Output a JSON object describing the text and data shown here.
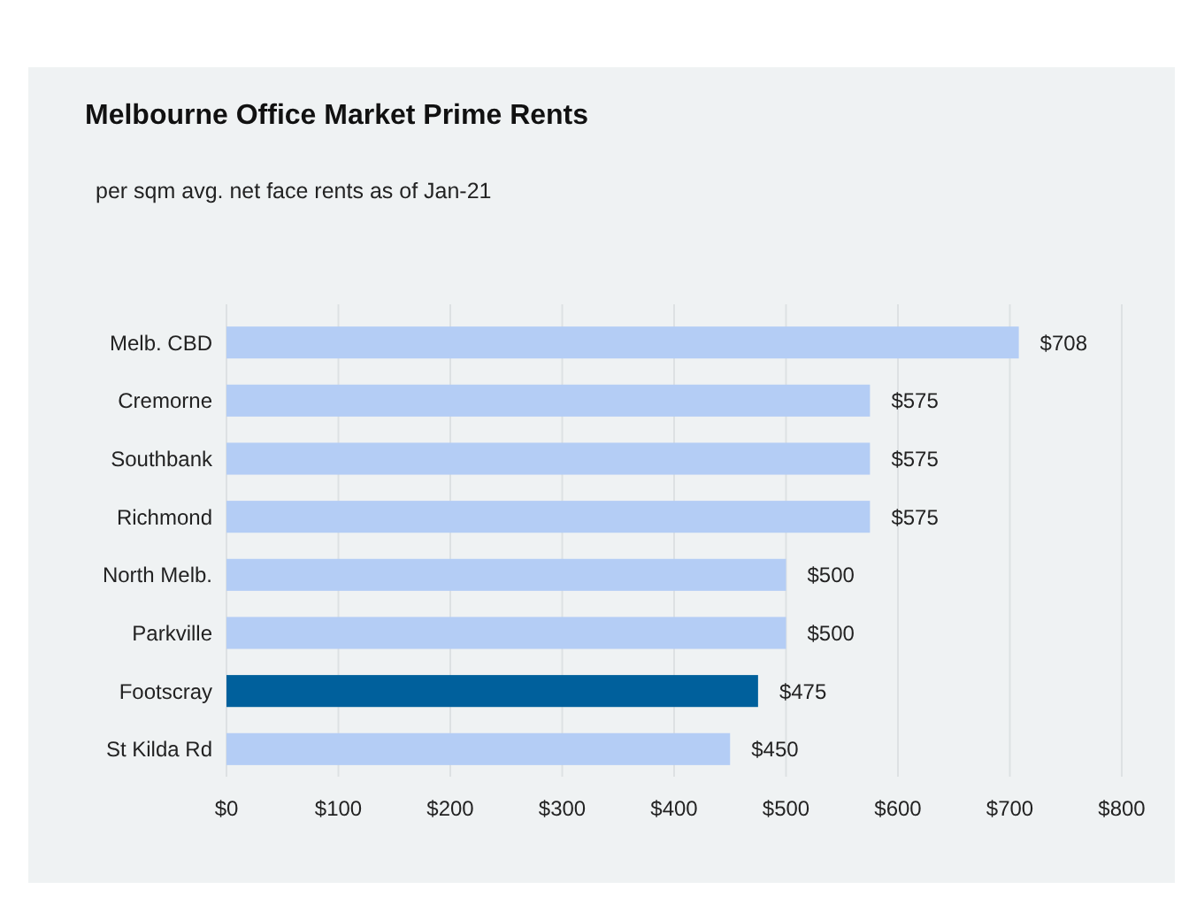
{
  "chart_data": {
    "type": "bar",
    "orientation": "horizontal",
    "title": "Melbourne Office Market Prime Rents",
    "subtitle": "per sqm avg. net face rents as of Jan-21",
    "categories": [
      "Melb. CBD",
      "Cremorne",
      "Southbank",
      "Richmond",
      "North Melb.",
      "Parkville",
      "Footscray",
      "St Kilda Rd"
    ],
    "values": [
      708,
      575,
      575,
      575,
      500,
      500,
      475,
      450
    ],
    "colors": [
      "#b4cdf5",
      "#b4cdf5",
      "#b4cdf5",
      "#b4cdf5",
      "#b4cdf5",
      "#b4cdf5",
      "#00609c",
      "#b4cdf5"
    ],
    "value_labels": [
      "$708",
      "$575",
      "$575",
      "$575",
      "$500",
      "$500",
      "$475",
      "$450"
    ],
    "xlim": [
      0,
      800
    ],
    "xticks": [
      {
        "value": 0,
        "label": "$0"
      },
      {
        "value": 100,
        "label": "$100"
      },
      {
        "value": 200,
        "label": "$200"
      },
      {
        "value": 300,
        "label": "$300"
      },
      {
        "value": 400,
        "label": "$400"
      },
      {
        "value": 500,
        "label": "$500"
      },
      {
        "value": 600,
        "label": "$600"
      },
      {
        "value": 700,
        "label": "$700"
      },
      {
        "value": 800,
        "label": "$800"
      }
    ],
    "grid": "x"
  }
}
